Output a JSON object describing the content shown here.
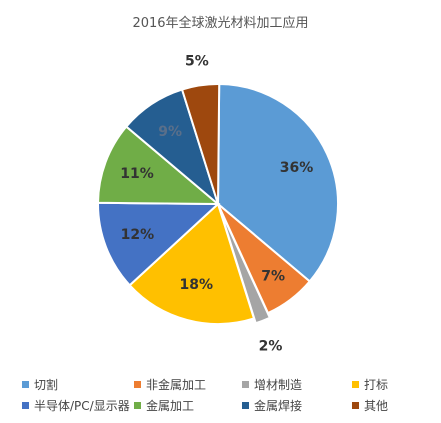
{
  "chart_data": {
    "type": "pie",
    "title": "2016年全球激光材料加工应用",
    "legend_position": "bottom",
    "slices": [
      {
        "name": "切割",
        "value": 36,
        "label": "36%",
        "color": "#5b9bd5",
        "label_color": "#333333"
      },
      {
        "name": "非金属加工",
        "value": 7,
        "label": "7%",
        "color": "#ed7d31",
        "label_color": "#333333"
      },
      {
        "name": "增材制造",
        "value": 2,
        "label": "2%",
        "color": "#a5a5a5",
        "label_color": "#333333"
      },
      {
        "name": "打标",
        "value": 18,
        "label": "18%",
        "color": "#ffc000",
        "label_color": "#333333"
      },
      {
        "name": "半导体/PC/显示器",
        "value": 12,
        "label": "12%",
        "color": "#4472c4",
        "label_color": "#333333"
      },
      {
        "name": "金属加工",
        "value": 11,
        "label": "11%",
        "color": "#70ad47",
        "label_color": "#333333"
      },
      {
        "name": "金属焊接",
        "value": 9,
        "label": "9%",
        "color": "#255e91",
        "label_color": "#5a6f8a"
      },
      {
        "name": "其他",
        "value": 5,
        "label": "5%",
        "color": "#9e480e",
        "label_color": "#333333"
      }
    ]
  }
}
